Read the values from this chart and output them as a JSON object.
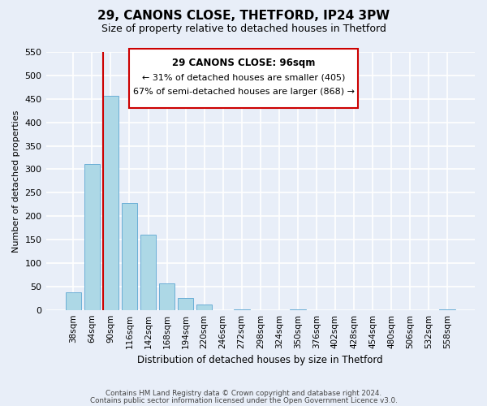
{
  "title": "29, CANONS CLOSE, THETFORD, IP24 3PW",
  "subtitle": "Size of property relative to detached houses in Thetford",
  "xlabel": "Distribution of detached houses by size in Thetford",
  "ylabel": "Number of detached properties",
  "bar_labels": [
    "38sqm",
    "64sqm",
    "90sqm",
    "116sqm",
    "142sqm",
    "168sqm",
    "194sqm",
    "220sqm",
    "246sqm",
    "272sqm",
    "298sqm",
    "324sqm",
    "350sqm",
    "376sqm",
    "402sqm",
    "428sqm",
    "454sqm",
    "480sqm",
    "506sqm",
    "532sqm",
    "558sqm"
  ],
  "bar_values": [
    38,
    311,
    457,
    228,
    160,
    57,
    26,
    12,
    0,
    2,
    0,
    0,
    2,
    0,
    0,
    0,
    0,
    0,
    0,
    0,
    2
  ],
  "bar_color": "#add8e6",
  "bar_edge_color": "#6baed6",
  "vline_x_index": 2,
  "vline_color": "#cc0000",
  "annotation_title": "29 CANONS CLOSE: 96sqm",
  "annotation_line1": "← 31% of detached houses are smaller (405)",
  "annotation_line2": "67% of semi-detached houses are larger (868) →",
  "ylim": [
    0,
    550
  ],
  "yticks": [
    0,
    50,
    100,
    150,
    200,
    250,
    300,
    350,
    400,
    450,
    500,
    550
  ],
  "footer1": "Contains HM Land Registry data © Crown copyright and database right 2024.",
  "footer2": "Contains public sector information licensed under the Open Government Licence v3.0.",
  "bg_color": "#e8eef8",
  "grid_color": "#ffffff"
}
